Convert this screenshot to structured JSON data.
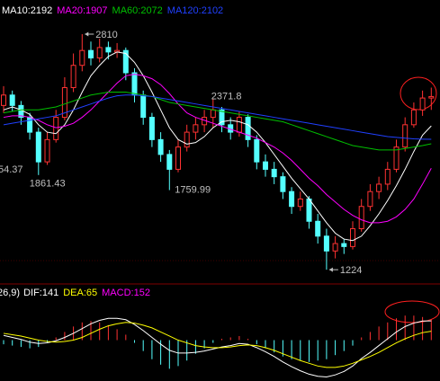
{
  "chart_data": [
    {
      "type": "candlestick",
      "up_color": "#ff3232",
      "down_color": "#54ffff",
      "ylim": [
        1128,
        3040
      ],
      "open": [
        2330,
        2400,
        2330,
        2250,
        2150,
        1950,
        2100,
        2250,
        2450,
        2600,
        2700,
        2650,
        2720,
        2690,
        2700,
        2550,
        2400,
        2250,
        2100,
        2000,
        1900,
        2050,
        2150,
        2200,
        2250,
        2300,
        2200,
        2150,
        2250,
        2100,
        1950,
        1900,
        1850,
        1750,
        1650,
        1700,
        1550,
        1450,
        1350,
        1400,
        1380,
        1500,
        1650,
        1750,
        1800,
        1900,
        2050,
        2200,
        2300,
        2380
      ],
      "high": [
        2460,
        2430,
        2360,
        2280,
        2180,
        2150,
        2300,
        2520,
        2680,
        2810,
        2760,
        2780,
        2760,
        2750,
        2720,
        2580,
        2430,
        2280,
        2150,
        2030,
        2100,
        2200,
        2250,
        2300,
        2371.8,
        2320,
        2250,
        2290,
        2270,
        2130,
        2000,
        1950,
        1880,
        1780,
        1750,
        1720,
        1600,
        1500,
        1450,
        1430,
        1550,
        1700,
        1800,
        1850,
        1950,
        2100,
        2250,
        2350,
        2430,
        2450
      ],
      "low": [
        2280,
        2290,
        2200,
        2100,
        1861.43,
        1930,
        2080,
        2230,
        2420,
        2560,
        2600,
        2620,
        2640,
        2650,
        2500,
        2350,
        2200,
        2050,
        1950,
        1759.99,
        1880,
        2020,
        2100,
        2150,
        2180,
        2150,
        2100,
        2120,
        2050,
        1900,
        1850,
        1800,
        1700,
        1600,
        1620,
        1500,
        1400,
        1224,
        1300,
        1330,
        1360,
        1480,
        1620,
        1700,
        1760,
        1880,
        2020,
        2180,
        2260,
        2300
      ],
      "close": [
        2400,
        2330,
        2250,
        2150,
        1950,
        2100,
        2250,
        2450,
        2600,
        2700,
        2650,
        2720,
        2690,
        2700,
        2550,
        2400,
        2250,
        2100,
        2000,
        1900,
        2050,
        2150,
        2200,
        2250,
        2300,
        2200,
        2150,
        2250,
        2100,
        1950,
        1900,
        1850,
        1750,
        1650,
        1700,
        1550,
        1450,
        1350,
        1400,
        1380,
        1500,
        1650,
        1750,
        1800,
        1900,
        2050,
        2200,
        2300,
        2380,
        2390
      ],
      "series": [
        {
          "name": "MA10:2192",
          "color": "#ffffff",
          "values": [
            2300,
            2320,
            2300,
            2270,
            2200,
            2150,
            2140,
            2200,
            2300,
            2420,
            2530,
            2600,
            2660,
            2690,
            2680,
            2620,
            2530,
            2420,
            2300,
            2180,
            2100,
            2070,
            2080,
            2120,
            2180,
            2220,
            2230,
            2220,
            2200,
            2150,
            2080,
            2000,
            1920,
            1840,
            1770,
            1700,
            1620,
            1540,
            1470,
            1430,
            1420,
            1450,
            1520,
            1600,
            1690,
            1790,
            1900,
            2020,
            2130,
            2192
          ]
        },
        {
          "name": "MA20:1907",
          "color": "#ff00ff",
          "values": [
            2250,
            2260,
            2260,
            2250,
            2230,
            2200,
            2180,
            2190,
            2210,
            2250,
            2300,
            2360,
            2420,
            2480,
            2530,
            2540,
            2530,
            2510,
            2470,
            2410,
            2340,
            2280,
            2250,
            2230,
            2210,
            2190,
            2170,
            2150,
            2130,
            2110,
            2080,
            2050,
            2010,
            1960,
            1900,
            1840,
            1790,
            1730,
            1680,
            1630,
            1590,
            1560,
            1540,
            1540,
            1550,
            1580,
            1630,
            1700,
            1800,
            1907
          ]
        },
        {
          "name": "MA60:2072",
          "color": "#00c000",
          "values": [
            2280,
            2290,
            2300,
            2300,
            2300,
            2310,
            2320,
            2340,
            2360,
            2380,
            2400,
            2410,
            2420,
            2420,
            2420,
            2410,
            2400,
            2390,
            2370,
            2350,
            2340,
            2330,
            2320,
            2310,
            2300,
            2290,
            2280,
            2270,
            2260,
            2250,
            2240,
            2230,
            2220,
            2200,
            2180,
            2160,
            2140,
            2120,
            2100,
            2080,
            2060,
            2050,
            2040,
            2030,
            2030,
            2030,
            2040,
            2050,
            2060,
            2072
          ]
        },
        {
          "name": "MA120:2102",
          "color": "#2040ff",
          "values": [
            2200,
            2210,
            2220,
            2230,
            2240,
            2250,
            2260,
            2280,
            2300,
            2320,
            2340,
            2360,
            2380,
            2395,
            2400,
            2400,
            2395,
            2390,
            2380,
            2370,
            2360,
            2350,
            2340,
            2330,
            2320,
            2310,
            2300,
            2290,
            2280,
            2270,
            2260,
            2250,
            2240,
            2230,
            2220,
            2210,
            2200,
            2190,
            2180,
            2170,
            2160,
            2150,
            2140,
            2130,
            2120,
            2115,
            2110,
            2105,
            2103,
            2102
          ]
        }
      ],
      "annotations": [
        {
          "x": 9,
          "value": 2810,
          "style": "arrow"
        },
        {
          "x": 24,
          "value": 2371.8,
          "style": "above"
        },
        {
          "x": 4,
          "value": 1861.43,
          "style": "below"
        },
        {
          "x": 19,
          "value": 1759.99,
          "style": "right"
        },
        {
          "x": 37,
          "value": 1224,
          "style": "arrow"
        }
      ],
      "clipped_label": "54.37"
    },
    {
      "type": "macd",
      "params": "26,9)",
      "ylim": [
        -300,
        320
      ],
      "up_color": "#ff3232",
      "down_color": "#54ffff",
      "series": [
        {
          "name": "DIF:141",
          "color": "#ffffff",
          "values": [
            35,
            20,
            5,
            -15,
            -25,
            -20,
            -5,
            20,
            50,
            85,
            120,
            145,
            160,
            160,
            150,
            115,
            70,
            20,
            -30,
            -75,
            -95,
            -95,
            -90,
            -80,
            -65,
            -50,
            -40,
            -25,
            -30,
            -55,
            -85,
            -120,
            -160,
            -195,
            -225,
            -250,
            -265,
            -270,
            -255,
            -230,
            -190,
            -135,
            -90,
            -40,
            10,
            60,
            100,
            125,
            140,
            141
          ]
        },
        {
          "name": "DEA:65",
          "color": "#ffff00",
          "values": [
            50,
            40,
            30,
            15,
            0,
            -10,
            -15,
            -10,
            0,
            20,
            50,
            80,
            105,
            120,
            130,
            125,
            110,
            90,
            60,
            30,
            0,
            -20,
            -40,
            -50,
            -55,
            -55,
            -50,
            -40,
            -35,
            -40,
            -55,
            -75,
            -100,
            -125,
            -150,
            -170,
            -190,
            -200,
            -200,
            -190,
            -170,
            -145,
            -120,
            -90,
            -55,
            -20,
            10,
            35,
            55,
            65
          ]
        },
        {
          "name": "MACD:152",
          "color": "#ff00ff",
          "values": [
            -30,
            -40,
            -50,
            -60,
            -50,
            -20,
            20,
            60,
            100,
            130,
            140,
            130,
            110,
            80,
            40,
            -20,
            -80,
            -140,
            -180,
            -210,
            -190,
            -150,
            -100,
            -60,
            -20,
            10,
            20,
            30,
            10,
            -30,
            -60,
            -90,
            -120,
            -140,
            -150,
            -160,
            -150,
            -140,
            -110,
            -80,
            -40,
            20,
            60,
            100,
            130,
            160,
            180,
            180,
            170,
            152
          ]
        }
      ]
    }
  ]
}
